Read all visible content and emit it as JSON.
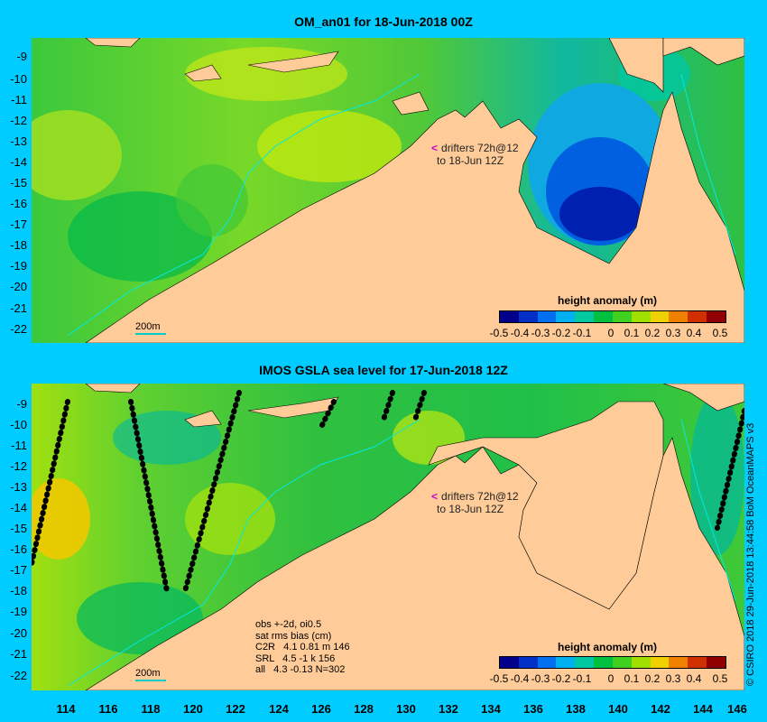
{
  "top_panel": {
    "title": "OM_an01 for 18-Jun-2018 00Z",
    "lat_labels": [
      "-9",
      "-10",
      "-11",
      "-12",
      "-13",
      "-14",
      "-15",
      "-16",
      "-17",
      "-18",
      "-19",
      "-20",
      "-21",
      "-22"
    ],
    "colorbar_title": "height anomaly (m)",
    "colorbar_labels": [
      "-0.5",
      "-0.4",
      "-0.3",
      "-0.2",
      "-0.1",
      "0",
      "0.1",
      "0.2",
      "0.3",
      "0.4",
      "0.5"
    ],
    "drifter_text": "drifters 72h@12",
    "drifter_text2": "to 18-Jun 12Z",
    "scale_label": "200m"
  },
  "bottom_panel": {
    "title": "IMOS GSLA sea level  for 17-Jun-2018 12Z",
    "lat_labels": [
      "-9",
      "-10",
      "-11",
      "-12",
      "-13",
      "-14",
      "-15",
      "-16",
      "-17",
      "-18",
      "-19",
      "-20",
      "-21",
      "-22"
    ],
    "colorbar_title": "height anomaly (m)",
    "colorbar_labels": [
      "-0.5",
      "-0.4",
      "-0.3",
      "-0.2",
      "-0.1",
      "0",
      "0.1",
      "0.2",
      "0.3",
      "0.4",
      "0.5"
    ],
    "drifter_text": "drifters 72h@12",
    "drifter_text2": "to 18-Jun 12Z",
    "scale_label": "200m",
    "stats": {
      "line1": "obs +-2d, oi0.5",
      "line2": "sat rms bias (cm)",
      "line3": "C2R   4.1 0.81 m 146",
      "line4": "SRL   4.5 -1 k 156",
      "line5": "all   4.3 -0.13 N=302"
    }
  },
  "lon_labels": [
    "114",
    "116",
    "118",
    "120",
    "122",
    "124",
    "126",
    "128",
    "130",
    "132",
    "134",
    "136",
    "138",
    "140",
    "142",
    "144",
    "146"
  ],
  "credit": "© CSIRO 2018  29-Jun-2018 13:44:58 BoM OceanMAPS v3",
  "colors": {
    "background": "#00ccff",
    "land": "#ffcc99",
    "colorbar": [
      "#00008b",
      "#0030c8",
      "#0070f0",
      "#00b0f0",
      "#00c8a0",
      "#00c040",
      "#40d020",
      "#a0e000",
      "#f0d000",
      "#f08000",
      "#d03000",
      "#900000"
    ]
  }
}
